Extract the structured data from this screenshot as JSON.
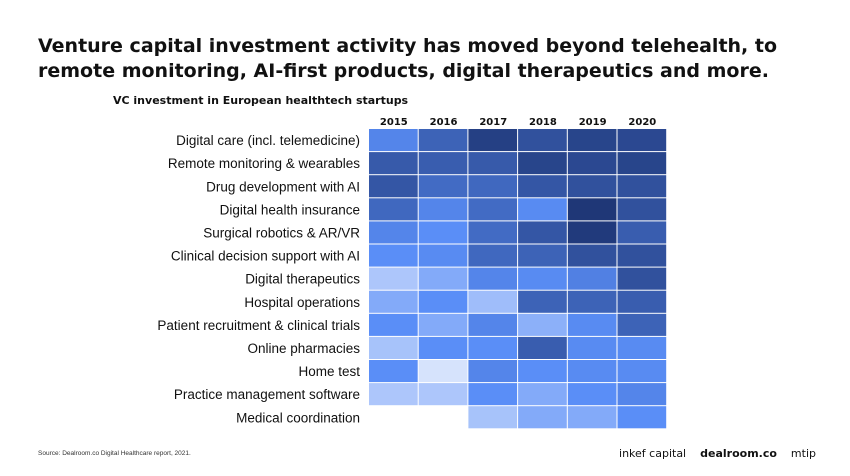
{
  "headline": "Venture capital investment activity has moved beyond telehealth, to remote monitoring, AI-first products, digital therapeutics and more.",
  "source": "Source: Dealroom.co Digital Healthcare report, 2021.",
  "logos": [
    "inkef capital",
    "dealroom.co",
    "mtip"
  ],
  "chart_data": {
    "type": "heatmap",
    "title": "VC investment in European healthtech startups",
    "columns": [
      "2015",
      "2016",
      "2017",
      "2018",
      "2019",
      "2020"
    ],
    "rows": [
      "Digital care (incl. telemedicine)",
      "Remote monitoring & wearables",
      "Drug development with AI",
      "Digital health insurance",
      "Surgical robotics & AR/VR",
      "Clinical decision support with AI",
      "Digital therapeutics",
      "Hospital operations",
      "Patient recruitment & clinical trials",
      "Online pharmacies",
      "Home test",
      "Practice management software",
      "Medical coordination"
    ],
    "intensity_scale": "0 = lightest, 1 = darkest blue; no cell value labels printed",
    "values": [
      [
        0.55,
        0.75,
        0.95,
        0.85,
        0.92,
        0.9
      ],
      [
        0.8,
        0.78,
        0.8,
        0.92,
        0.9,
        0.92
      ],
      [
        0.82,
        0.7,
        0.72,
        0.82,
        0.85,
        0.85
      ],
      [
        0.72,
        0.55,
        0.7,
        0.52,
        1.0,
        0.85
      ],
      [
        0.55,
        0.5,
        0.7,
        0.82,
        0.98,
        0.78
      ],
      [
        0.5,
        0.52,
        0.72,
        0.75,
        0.85,
        0.85
      ],
      [
        0.2,
        0.35,
        0.55,
        0.52,
        0.58,
        0.85
      ],
      [
        0.35,
        0.5,
        0.25,
        0.75,
        0.75,
        0.78
      ],
      [
        0.5,
        0.35,
        0.55,
        0.32,
        0.52,
        0.75
      ],
      [
        0.22,
        0.5,
        0.5,
        0.78,
        0.52,
        0.52
      ],
      [
        0.5,
        0.05,
        0.55,
        0.5,
        0.52,
        0.52
      ],
      [
        0.2,
        0.2,
        0.5,
        0.35,
        0.5,
        0.55
      ],
      [
        null,
        null,
        0.22,
        0.35,
        0.35,
        0.5
      ]
    ],
    "color_light": "#e4ecfd",
    "color_mid": "#5a8ef7",
    "color_dark": "#1f3777"
  }
}
